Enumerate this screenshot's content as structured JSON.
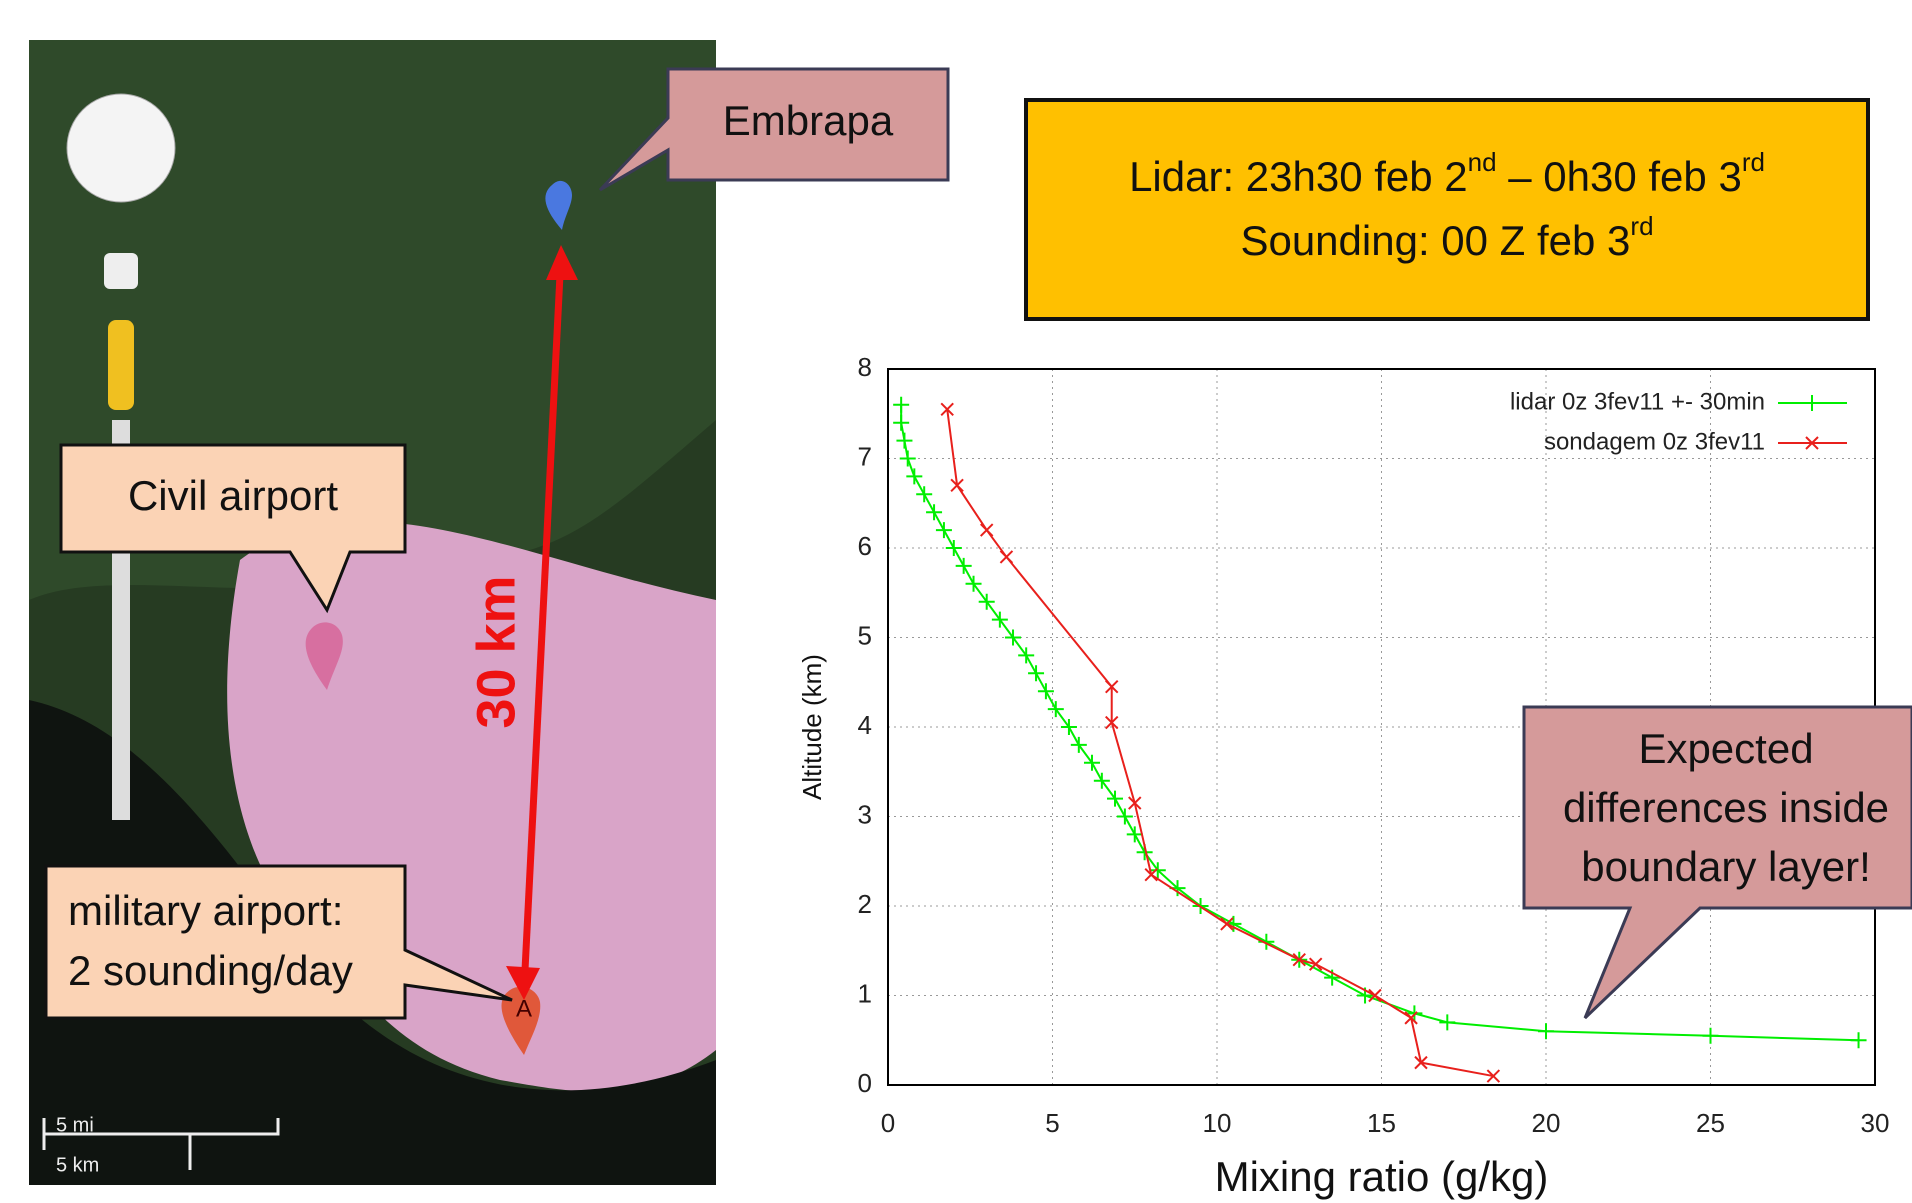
{
  "callouts": {
    "embrapa": "Embrapa",
    "civil": "Civil airport",
    "military": [
      "military airport:",
      "2 sounding/day"
    ],
    "expected": [
      "Expected",
      "differences inside",
      "boundary layer!"
    ]
  },
  "map": {
    "distance_label": "30 km",
    "scale_mi": "5 mi",
    "scale_km": "5 km",
    "marker_label": "A"
  },
  "info_box": {
    "line1": [
      "Lidar: 23h30 feb 2",
      "nd",
      " – 0h30 feb 3",
      "rd"
    ],
    "line2": [
      "Sounding: 00 Z feb 3",
      "rd"
    ]
  },
  "chart_data": {
    "type": "line",
    "x_label": "Mixing ratio (g/kg)",
    "y_label": "Altitude (km)",
    "xlim": [
      0,
      30
    ],
    "ylim": [
      0,
      8
    ],
    "xticks": [
      0,
      5,
      10,
      15,
      20,
      25,
      30
    ],
    "yticks": [
      0,
      1,
      2,
      3,
      4,
      5,
      6,
      7,
      8
    ],
    "grid": true,
    "legend": "upper right",
    "series": [
      {
        "name": "lidar 0z 3fev11 +- 30min",
        "color": "#00ee00",
        "marker": "+",
        "x": [
          29.5,
          25,
          20,
          17,
          16,
          14.5,
          13.5,
          12.5,
          11.5,
          10.5,
          9.5,
          8.8,
          8.2,
          7.8,
          7.5,
          7.2,
          6.9,
          6.5,
          6.2,
          5.8,
          5.5,
          5.1,
          4.8,
          4.5,
          4.2,
          3.8,
          3.4,
          3.0,
          2.6,
          2.3,
          2.0,
          1.7,
          1.4,
          1.1,
          0.8,
          0.6,
          0.5,
          0.4,
          0.4
        ],
        "values": [
          0.5,
          0.55,
          0.6,
          0.7,
          0.8,
          1.0,
          1.2,
          1.4,
          1.6,
          1.8,
          2.0,
          2.2,
          2.4,
          2.6,
          2.8,
          3.0,
          3.2,
          3.4,
          3.6,
          3.8,
          4.0,
          4.2,
          4.4,
          4.6,
          4.8,
          5.0,
          5.2,
          5.4,
          5.6,
          5.8,
          6.0,
          6.2,
          6.4,
          6.6,
          6.8,
          7.0,
          7.2,
          7.4,
          7.6
        ]
      },
      {
        "name": "sondagem 0z 3fev11",
        "color": "#e8201c",
        "marker": "x",
        "x": [
          18.4,
          16.2,
          15.9,
          14.8,
          13.0,
          12.5,
          10.3,
          8.0,
          7.5,
          6.8,
          6.8,
          3.6,
          3.0,
          2.1,
          1.8
        ],
        "values": [
          0.1,
          0.25,
          0.75,
          1.0,
          1.35,
          1.4,
          1.8,
          2.35,
          3.15,
          4.05,
          4.45,
          5.9,
          6.2,
          6.7,
          7.55
        ]
      }
    ]
  }
}
